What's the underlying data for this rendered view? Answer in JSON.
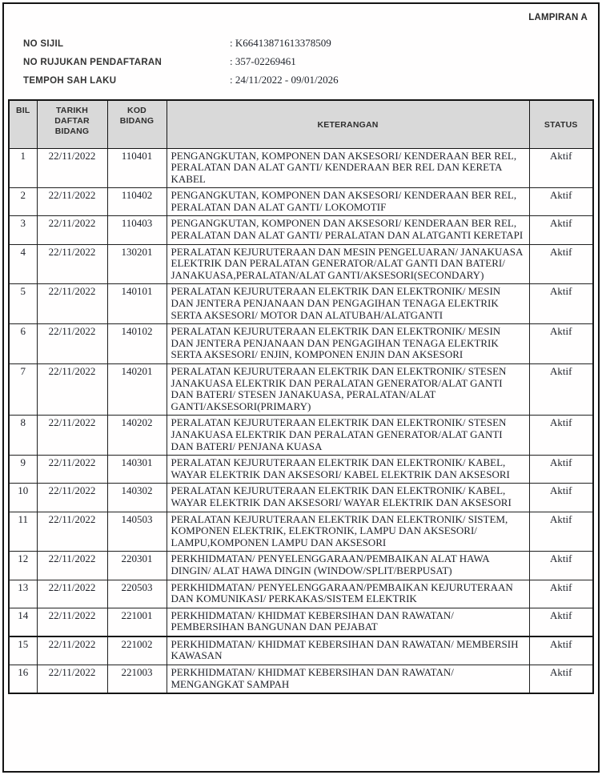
{
  "header": {
    "lampiran_label": "LAMPIRAN A"
  },
  "certificate_info": {
    "items": [
      {
        "label": "NO SIJIL",
        "value": "K66413871613378509"
      },
      {
        "label": "NO RUJUKAN PENDAFTARAN",
        "value": "357-02269461"
      },
      {
        "label": "TEMPOH SAH LAKU",
        "value": "24/11/2022 - 09/01/2026"
      }
    ]
  },
  "table": {
    "headers": [
      "BIL",
      "TARIKH DAFTAR BIDANG",
      "KOD BIDANG",
      "KETERANGAN",
      "STATUS"
    ],
    "rows": [
      {
        "bil": "1",
        "tarikh_daftar": "22/11/2022",
        "kod_bidang": "110401",
        "keterangan": "PENGANGKUTAN, KOMPONEN DAN AKSESORI/ KENDERAAN BER REL, PERALATAN DAN ALAT GANTI/ KENDERAAN BER REL DAN KERETA KABEL",
        "status": "Aktif"
      },
      {
        "bil": "2",
        "tarikh_daftar": "22/11/2022",
        "kod_bidang": "110402",
        "keterangan": "PENGANGKUTAN, KOMPONEN DAN AKSESORI/ KENDERAAN BER REL, PERALATAN DAN ALAT GANTI/ LOKOMOTIF",
        "status": "Aktif"
      },
      {
        "bil": "3",
        "tarikh_daftar": "22/11/2022",
        "kod_bidang": "110403",
        "keterangan": "PENGANGKUTAN, KOMPONEN DAN AKSESORI/ KENDERAAN BER REL, PERALATAN DAN ALAT GANTI/ PERALATAN DAN ALATGANTI KERETAPI",
        "status": "Aktif"
      },
      {
        "bil": "4",
        "tarikh_daftar": "22/11/2022",
        "kod_bidang": "130201",
        "keterangan": "PERALATAN KEJURUTERAAN DAN MESIN  PENGELUARAN/ JANAKUASA ELEKTRIK DAN PERALATAN GENERATOR/ALAT GANTI DAN BATERI/ JANAKUASA,PERALATAN/ALAT GANTI/AKSESORI(SECONDARY)",
        "status": "Aktif"
      },
      {
        "bil": "5",
        "tarikh_daftar": "22/11/2022",
        "kod_bidang": "140101",
        "keterangan": "PERALATAN KEJURUTERAAN ELEKTRIK DAN ELEKTRONIK/ MESIN DAN JENTERA PENJANAAN DAN PENGAGIHAN TENAGA ELEKTRIK SERTA AKSESORI/ MOTOR DAN ALATUBAH/ALATGANTI",
        "status": "Aktif"
      },
      {
        "bil": "6",
        "tarikh_daftar": "22/11/2022",
        "kod_bidang": "140102",
        "keterangan": "PERALATAN KEJURUTERAAN ELEKTRIK DAN ELEKTRONIK/ MESIN DAN JENTERA PENJANAAN DAN PENGAGIHAN TENAGA ELEKTRIK SERTA AKSESORI/ ENJIN, KOMPONEN ENJIN DAN AKSESORI",
        "status": "Aktif"
      },
      {
        "bil": "7",
        "tarikh_daftar": "22/11/2022",
        "kod_bidang": "140201",
        "keterangan": "PERALATAN KEJURUTERAAN ELEKTRIK DAN ELEKTRONIK/ STESEN JANAKUASA ELEKTRIK DAN PERALATAN GENERATOR/ALAT GANTI DAN BATERI/ STESEN JANAKUASA, PERALATAN/ALAT GANTI/AKSESORI(PRIMARY)",
        "status": "Aktif"
      },
      {
        "bil": "8",
        "tarikh_daftar": "22/11/2022",
        "kod_bidang": "140202",
        "keterangan": "PERALATAN KEJURUTERAAN ELEKTRIK DAN ELEKTRONIK/ STESEN JANAKUASA ELEKTRIK DAN PERALATAN GENERATOR/ALAT GANTI DAN BATERI/ PENJANA KUASA",
        "status": "Aktif"
      },
      {
        "bil": "9",
        "tarikh_daftar": "22/11/2022",
        "kod_bidang": "140301",
        "keterangan": "PERALATAN KEJURUTERAAN ELEKTRIK DAN ELEKTRONIK/ KABEL, WAYAR ELEKTRIK DAN AKSESORI/ KABEL ELEKTRIK DAN AKSESORI",
        "status": "Aktif"
      },
      {
        "bil": "10",
        "tarikh_daftar": "22/11/2022",
        "kod_bidang": "140302",
        "keterangan": "PERALATAN KEJURUTERAAN ELEKTRIK DAN ELEKTRONIK/ KABEL, WAYAR ELEKTRIK DAN AKSESORI/ WAYAR ELEKTRIK DAN AKSESORI",
        "status": "Aktif"
      },
      {
        "bil": "11",
        "tarikh_daftar": "22/11/2022",
        "kod_bidang": "140503",
        "keterangan": "PERALATAN KEJURUTERAAN ELEKTRIK DAN ELEKTRONIK/ SISTEM, KOMPONEN ELEKTRIK, ELEKTRONIK, LAMPU DAN AKSESORI/ LAMPU,KOMPONEN LAMPU DAN AKSESORI",
        "status": "Aktif"
      },
      {
        "bil": "12",
        "tarikh_daftar": "22/11/2022",
        "kod_bidang": "220301",
        "keterangan": "PERKHIDMATAN/ PENYELENGGARAAN/PEMBAIKAN ALAT HAWA DINGIN/ ALAT HAWA DINGIN (WINDOW/SPLIT/BERPUSAT)",
        "status": "Aktif"
      },
      {
        "bil": "13",
        "tarikh_daftar": "22/11/2022",
        "kod_bidang": "220503",
        "keterangan": "PERKHIDMATAN/ PENYELENGGARAAN/PEMBAIKAN KEJURUTERAAN DAN KOMUNIKASI/ PERKAKAS/SISTEM ELEKTRIK",
        "status": "Aktif"
      },
      {
        "bil": "14",
        "tarikh_daftar": "22/11/2022",
        "kod_bidang": "221001",
        "keterangan": "PERKHIDMATAN/ KHIDMAT KEBERSIHAN DAN RAWATAN/ PEMBERSIHAN BANGUNAN DAN PEJABAT",
        "status": "Aktif"
      },
      {
        "bil": "15",
        "tarikh_daftar": "22/11/2022",
        "kod_bidang": "221002",
        "keterangan": "PERKHIDMATAN/ KHIDMAT KEBERSIHAN DAN RAWATAN/ MEMBERSIH KAWASAN",
        "status": "Aktif"
      },
      {
        "bil": "16",
        "tarikh_daftar": "22/11/2022",
        "kod_bidang": "221003",
        "keterangan": "PERKHIDMATAN/ KHIDMAT KEBERSIHAN DAN RAWATAN/ MENGANGKAT SAMPAH",
        "status": "Aktif"
      }
    ]
  }
}
